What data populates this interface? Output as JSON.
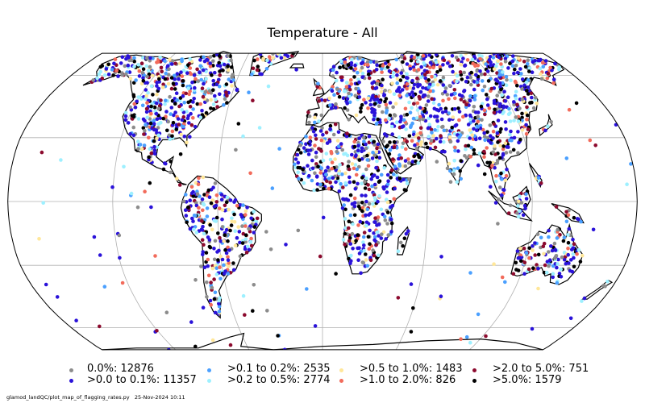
{
  "map": {
    "title": "Temperature - All",
    "projection": "robinson",
    "grid": true,
    "colors": {
      "land_outline": "#000000",
      "graticule": "#b0b0b0"
    }
  },
  "legend": {
    "placement": "bottom",
    "items": [
      {
        "label": "0.0%: 12876",
        "color": "#8c8c8c"
      },
      {
        "label": ">0.0 to 0.1%: 11357",
        "color": "#2a12d9"
      },
      {
        "label": ">0.1 to 0.2%: 2535",
        "color": "#4ba0ff"
      },
      {
        "label": ">0.2 to 0.5%: 2774",
        "color": "#9ef0ff"
      },
      {
        "label": ">0.5 to 1.0%: 1483",
        "color": "#ffe79a"
      },
      {
        "label": ">1.0 to 2.0%: 826",
        "color": "#f26b5b"
      },
      {
        "label": ">2.0 to 5.0%: 751",
        "color": "#8c0a2e"
      },
      {
        "label": ">5.0%: 1579",
        "color": "#000000"
      }
    ]
  },
  "footer": {
    "script": "glamod_landQC/plot_map_of_flagging_rates.py",
    "timestamp": "25-Nov-2024 10:11"
  }
}
